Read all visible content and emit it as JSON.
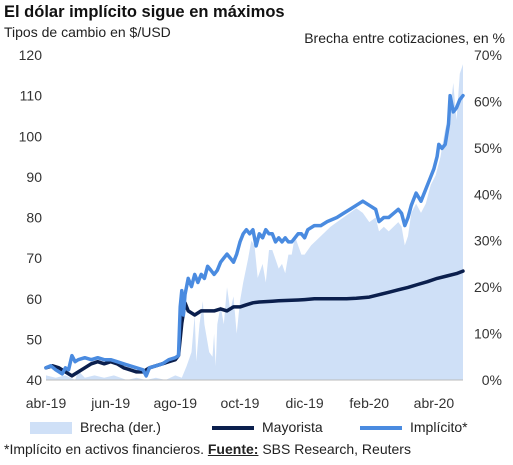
{
  "header": {
    "title": "El dólar implícito sigue en máximos",
    "ylabel_left": "Tipos de cambio en $/USD",
    "ylabel_right": "Brecha entre cotizaciones, en %"
  },
  "legend": {
    "brecha": "Brecha (der.)",
    "mayorista": "Mayorista",
    "implicito": "Implícito*"
  },
  "footnote": {
    "text": "*Implícito en activos financieros. ",
    "source_label": "Fuente:",
    "source_text": " SBS Research, Reuters"
  },
  "colors": {
    "brecha": "#cfe0f7",
    "mayorista": "#0b1f4d",
    "implicito": "#4a8be0"
  },
  "chart_data": {
    "type": "line",
    "x_tick_labels": [
      "abr-19",
      "jun-19",
      "ago-19",
      "oct-19",
      "dic-19",
      "feb-20",
      "abr-20"
    ],
    "x_tick_months": [
      0,
      2,
      4,
      6,
      8,
      10,
      12
    ],
    "x_range_months": [
      0,
      12.9
    ],
    "y_left": {
      "ticks": [
        40,
        50,
        60,
        70,
        80,
        90,
        100,
        110,
        120
      ],
      "range": [
        40,
        120
      ]
    },
    "y_right": {
      "ticks": [
        "0%",
        "10%",
        "20%",
        "30%",
        "40%",
        "50%",
        "60%",
        "70%"
      ],
      "range": [
        0,
        70
      ]
    },
    "grid": false,
    "legend_position": "bottom",
    "series": [
      {
        "name": "Brecha (der.)",
        "type": "area",
        "axis": "right",
        "points": [
          [
            0,
            1
          ],
          [
            0.3,
            0.5
          ],
          [
            0.6,
            1
          ],
          [
            0.9,
            0
          ],
          [
            1.0,
            2
          ],
          [
            1.2,
            0.5
          ],
          [
            1.5,
            1
          ],
          [
            1.8,
            0.5
          ],
          [
            2.1,
            1
          ],
          [
            2.5,
            0
          ],
          [
            2.8,
            0.5
          ],
          [
            3.1,
            0
          ],
          [
            3.4,
            0.5
          ],
          [
            3.7,
            0
          ],
          [
            4.0,
            1
          ],
          [
            4.2,
            0.5
          ],
          [
            4.35,
            3
          ],
          [
            4.5,
            6
          ],
          [
            4.6,
            14
          ],
          [
            4.65,
            4
          ],
          [
            4.75,
            12
          ],
          [
            4.85,
            17
          ],
          [
            4.9,
            12
          ],
          [
            5.05,
            6
          ],
          [
            5.15,
            5
          ],
          [
            5.2,
            10
          ],
          [
            5.25,
            3
          ],
          [
            5.3,
            12
          ],
          [
            5.4,
            16
          ],
          [
            5.5,
            12
          ],
          [
            5.6,
            20
          ],
          [
            5.7,
            15
          ],
          [
            5.8,
            18
          ],
          [
            5.9,
            10
          ],
          [
            6.0,
            17
          ],
          [
            6.1,
            21
          ],
          [
            6.25,
            26
          ],
          [
            6.35,
            30
          ],
          [
            6.45,
            29
          ],
          [
            6.55,
            22
          ],
          [
            6.7,
            25
          ],
          [
            6.8,
            21
          ],
          [
            6.9,
            28
          ],
          [
            7.0,
            28
          ],
          [
            7.1,
            26
          ],
          [
            7.2,
            24
          ],
          [
            7.3,
            25
          ],
          [
            7.4,
            23
          ],
          [
            7.5,
            27
          ],
          [
            7.6,
            27
          ],
          [
            7.7,
            31
          ],
          [
            7.8,
            29
          ],
          [
            7.9,
            27
          ],
          [
            8.0,
            27
          ],
          [
            8.2,
            29
          ],
          [
            8.5,
            31
          ],
          [
            8.8,
            33
          ],
          [
            9.0,
            34
          ],
          [
            9.2,
            35
          ],
          [
            9.4,
            36
          ],
          [
            9.6,
            37
          ],
          [
            9.8,
            36
          ],
          [
            10.0,
            34
          ],
          [
            10.2,
            35
          ],
          [
            10.3,
            32
          ],
          [
            10.45,
            33
          ],
          [
            10.6,
            32
          ],
          [
            10.75,
            33
          ],
          [
            10.9,
            34
          ],
          [
            11.0,
            33
          ],
          [
            11.1,
            29
          ],
          [
            11.2,
            31
          ],
          [
            11.3,
            36
          ],
          [
            11.45,
            38
          ],
          [
            11.6,
            36
          ],
          [
            11.75,
            38
          ],
          [
            11.9,
            42
          ],
          [
            12.05,
            44
          ],
          [
            12.2,
            48
          ],
          [
            12.35,
            54
          ],
          [
            12.5,
            58
          ],
          [
            12.6,
            64
          ],
          [
            12.7,
            56
          ],
          [
            12.8,
            66
          ],
          [
            12.9,
            68
          ]
        ]
      },
      {
        "name": "Mayorista",
        "type": "line",
        "axis": "left",
        "points": [
          [
            0,
            43
          ],
          [
            0.2,
            43.5
          ],
          [
            0.4,
            43
          ],
          [
            0.6,
            42
          ],
          [
            0.8,
            41
          ],
          [
            1.0,
            42
          ],
          [
            1.2,
            43
          ],
          [
            1.4,
            44
          ],
          [
            1.6,
            44.5
          ],
          [
            1.8,
            44
          ],
          [
            2.0,
            44.5
          ],
          [
            2.2,
            44
          ],
          [
            2.4,
            43
          ],
          [
            2.6,
            42.5
          ],
          [
            2.8,
            42
          ],
          [
            3.0,
            42
          ],
          [
            3.2,
            43
          ],
          [
            3.4,
            43.5
          ],
          [
            3.6,
            44
          ],
          [
            3.8,
            44.5
          ],
          [
            4.0,
            45
          ],
          [
            4.1,
            46
          ],
          [
            4.2,
            54
          ],
          [
            4.3,
            59
          ],
          [
            4.4,
            57
          ],
          [
            4.6,
            56
          ],
          [
            4.8,
            57
          ],
          [
            5.0,
            57
          ],
          [
            5.2,
            57
          ],
          [
            5.4,
            57.5
          ],
          [
            5.6,
            57
          ],
          [
            5.8,
            58
          ],
          [
            6.0,
            58
          ],
          [
            6.2,
            58.5
          ],
          [
            6.4,
            59
          ],
          [
            6.6,
            59.2
          ],
          [
            6.8,
            59.3
          ],
          [
            7.0,
            59.4
          ],
          [
            7.2,
            59.5
          ],
          [
            7.5,
            59.6
          ],
          [
            7.8,
            59.7
          ],
          [
            8.0,
            59.8
          ],
          [
            8.3,
            60
          ],
          [
            8.6,
            60
          ],
          [
            9.0,
            60
          ],
          [
            9.3,
            60
          ],
          [
            9.6,
            60.1
          ],
          [
            10.0,
            60.4
          ],
          [
            10.3,
            61
          ],
          [
            10.6,
            61.6
          ],
          [
            10.9,
            62.2
          ],
          [
            11.2,
            62.8
          ],
          [
            11.5,
            63.5
          ],
          [
            11.8,
            64.2
          ],
          [
            12.1,
            65
          ],
          [
            12.4,
            65.6
          ],
          [
            12.7,
            66.2
          ],
          [
            12.9,
            66.8
          ]
        ]
      },
      {
        "name": "Implícito*",
        "type": "line",
        "axis": "left",
        "points": [
          [
            0,
            43
          ],
          [
            0.15,
            43.5
          ],
          [
            0.3,
            42.5
          ],
          [
            0.5,
            41.5
          ],
          [
            0.6,
            43
          ],
          [
            0.7,
            42.5
          ],
          [
            0.8,
            46
          ],
          [
            0.9,
            44.5
          ],
          [
            1.0,
            45
          ],
          [
            1.2,
            45.5
          ],
          [
            1.4,
            45
          ],
          [
            1.6,
            45.5
          ],
          [
            1.8,
            45
          ],
          [
            2.0,
            45
          ],
          [
            2.2,
            44.5
          ],
          [
            2.4,
            44
          ],
          [
            2.6,
            43.5
          ],
          [
            2.8,
            43
          ],
          [
            3.0,
            42.5
          ],
          [
            3.1,
            41
          ],
          [
            3.2,
            43
          ],
          [
            3.4,
            43.5
          ],
          [
            3.6,
            44
          ],
          [
            3.8,
            45
          ],
          [
            4.0,
            45.5
          ],
          [
            4.1,
            46
          ],
          [
            4.15,
            58
          ],
          [
            4.2,
            62
          ],
          [
            4.25,
            56
          ],
          [
            4.3,
            61
          ],
          [
            4.4,
            65
          ],
          [
            4.5,
            63
          ],
          [
            4.6,
            66
          ],
          [
            4.7,
            64
          ],
          [
            4.8,
            66
          ],
          [
            4.9,
            65
          ],
          [
            5.0,
            68
          ],
          [
            5.1,
            67
          ],
          [
            5.2,
            66
          ],
          [
            5.3,
            67
          ],
          [
            5.4,
            69
          ],
          [
            5.5,
            70
          ],
          [
            5.6,
            71
          ],
          [
            5.7,
            70
          ],
          [
            5.8,
            69
          ],
          [
            5.9,
            71
          ],
          [
            6.0,
            74
          ],
          [
            6.1,
            76
          ],
          [
            6.2,
            77
          ],
          [
            6.3,
            76
          ],
          [
            6.4,
            77
          ],
          [
            6.5,
            73
          ],
          [
            6.6,
            76
          ],
          [
            6.7,
            75
          ],
          [
            6.8,
            77
          ],
          [
            6.9,
            76
          ],
          [
            7.0,
            76
          ],
          [
            7.1,
            74
          ],
          [
            7.2,
            75
          ],
          [
            7.3,
            74
          ],
          [
            7.4,
            75
          ],
          [
            7.5,
            74
          ],
          [
            7.6,
            74
          ],
          [
            7.8,
            76
          ],
          [
            7.9,
            76
          ],
          [
            8.0,
            75
          ],
          [
            8.1,
            77
          ],
          [
            8.3,
            78
          ],
          [
            8.5,
            78
          ],
          [
            8.7,
            79
          ],
          [
            9.0,
            80
          ],
          [
            9.2,
            81
          ],
          [
            9.4,
            82
          ],
          [
            9.6,
            83
          ],
          [
            9.8,
            84
          ],
          [
            10.0,
            83
          ],
          [
            10.2,
            82
          ],
          [
            10.3,
            79
          ],
          [
            10.45,
            80
          ],
          [
            10.6,
            80
          ],
          [
            10.75,
            81
          ],
          [
            10.9,
            82
          ],
          [
            11.0,
            81
          ],
          [
            11.1,
            78
          ],
          [
            11.2,
            80
          ],
          [
            11.3,
            83
          ],
          [
            11.45,
            86
          ],
          [
            11.6,
            84
          ],
          [
            11.75,
            87
          ],
          [
            11.9,
            90
          ],
          [
            12.0,
            92
          ],
          [
            12.1,
            95
          ],
          [
            12.15,
            98
          ],
          [
            12.25,
            97
          ],
          [
            12.35,
            98
          ],
          [
            12.45,
            103
          ],
          [
            12.5,
            110
          ],
          [
            12.6,
            106
          ],
          [
            12.7,
            107
          ],
          [
            12.8,
            109
          ],
          [
            12.9,
            110
          ]
        ]
      }
    ]
  }
}
